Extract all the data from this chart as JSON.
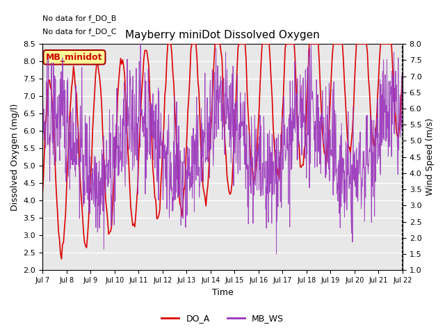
{
  "title": "Mayberry miniDot Dissolved Oxygen",
  "xlabel": "Time",
  "ylabel_left": "Dissolved Oxygen (mg/l)",
  "ylabel_right": "Wind Speed (m/s)",
  "annotation_lines": [
    "No data for f_DO_B",
    "No data for f_DO_C"
  ],
  "legend_label_box": "MB_minidot",
  "ylim_left": [
    2.0,
    8.5
  ],
  "ylim_right": [
    1.0,
    8.0
  ],
  "xtick_labels": [
    "Jul 7",
    "Jul 8",
    "Jul 9",
    "Jul 10",
    "Jul 11",
    "Jul 12",
    "Jul 13",
    "Jul 14",
    "Jul 15",
    "Jul 16",
    "Jul 17",
    "Jul 18",
    "Jul 19",
    "Jul 20",
    "Jul 21",
    "Jul 22"
  ],
  "do_color": "#dd0000",
  "ws_color": "#9933bb",
  "bg_color": "#e8e8e8",
  "grid_color": "#ffffff",
  "legend_items": [
    {
      "label": "DO_A",
      "color": "#dd0000"
    },
    {
      "label": "MB_WS",
      "color": "#9933bb"
    }
  ],
  "seed": 42
}
